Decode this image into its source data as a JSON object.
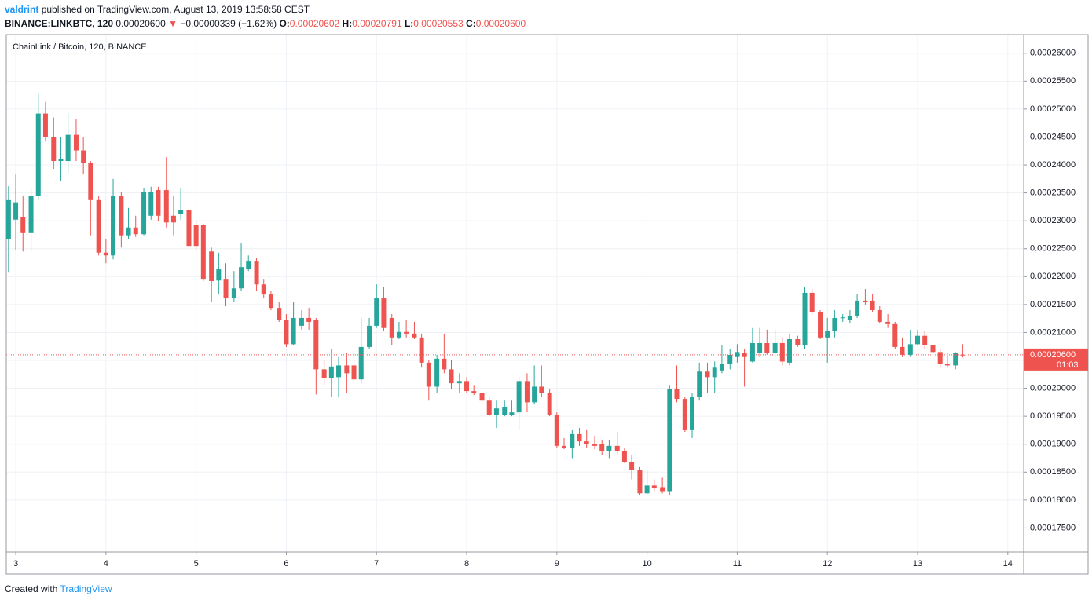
{
  "header": {
    "author": "valdrint",
    "published": "published on TradingView.com, August 13, 2019 13:58:58 CEST",
    "symbol": "BINANCE:LINKBTC, 120",
    "last": "0.00020600",
    "change": "−0.00000339 (−1.62%)",
    "o_label": "O:",
    "o": "0.00020602",
    "h_label": "H:",
    "h": "0.00020791",
    "l_label": "L:",
    "l": "0.00020553",
    "c_label": "C:",
    "c": "0.00020600"
  },
  "footer": {
    "created": "Created with",
    "brand": "TradingView"
  },
  "chart_data": {
    "type": "candlestick",
    "title": "ChainLink / Bitcoin, 120, BINANCE",
    "up_color": "#26a69a",
    "down_color": "#ef5350",
    "grid": true,
    "xlim": [
      2.895,
      14.176
    ],
    "xticks": [
      3,
      4,
      5,
      6,
      7,
      8,
      9,
      10,
      11,
      12,
      13,
      14
    ],
    "ylim": [
      0.0001707,
      0.0002632
    ],
    "yticks": [
      {
        "value": 0.000175,
        "label": "0.00017500"
      },
      {
        "value": 0.00018,
        "label": "0.00018000"
      },
      {
        "value": 0.000185,
        "label": "0.00018500"
      },
      {
        "value": 0.00019,
        "label": "0.00019000"
      },
      {
        "value": 0.000195,
        "label": "0.00019500"
      },
      {
        "value": 0.0002,
        "label": "0.00020000"
      },
      {
        "value": 0.000205,
        "label": "0.00020500"
      },
      {
        "value": 0.00021,
        "label": "0.00021000"
      },
      {
        "value": 0.000215,
        "label": "0.00021500"
      },
      {
        "value": 0.00022,
        "label": "0.00022000"
      },
      {
        "value": 0.000225,
        "label": "0.00022500"
      },
      {
        "value": 0.00023,
        "label": "0.00023000"
      },
      {
        "value": 0.000235,
        "label": "0.00023500"
      },
      {
        "value": 0.00024,
        "label": "0.00024000"
      },
      {
        "value": 0.000245,
        "label": "0.00024500"
      },
      {
        "value": 0.00025,
        "label": "0.00025000"
      },
      {
        "value": 0.000255,
        "label": "0.00025500"
      },
      {
        "value": 0.00026,
        "label": "0.00026000"
      }
    ],
    "last_price": {
      "value": 0.000206,
      "label": "0.00020600"
    },
    "countdown": "01:03",
    "x": [
      2.92,
      3,
      3.08,
      3.17,
      3.25,
      3.33,
      3.42,
      3.5,
      3.58,
      3.67,
      3.75,
      3.83,
      3.92,
      4,
      4.08,
      4.17,
      4.25,
      4.33,
      4.42,
      4.5,
      4.58,
      4.67,
      4.75,
      4.83,
      4.92,
      5,
      5.08,
      5.17,
      5.25,
      5.33,
      5.42,
      5.5,
      5.58,
      5.67,
      5.75,
      5.83,
      5.92,
      6,
      6.08,
      6.17,
      6.25,
      6.33,
      6.42,
      6.5,
      6.58,
      6.67,
      6.75,
      6.83,
      6.92,
      7,
      7.08,
      7.17,
      7.25,
      7.33,
      7.42,
      7.5,
      7.58,
      7.67,
      7.75,
      7.83,
      7.92,
      8,
      8.08,
      8.17,
      8.25,
      8.33,
      8.42,
      8.5,
      8.58,
      8.67,
      8.75,
      8.83,
      8.92,
      9,
      9.08,
      9.17,
      9.25,
      9.33,
      9.42,
      9.5,
      9.58,
      9.67,
      9.75,
      9.83,
      9.92,
      10,
      10.08,
      10.17,
      10.25,
      10.33,
      10.42,
      10.5,
      10.58,
      10.67,
      10.75,
      10.83,
      10.92,
      11,
      11.08,
      11.17,
      11.25,
      11.33,
      11.42,
      11.5,
      11.58,
      11.67,
      11.75,
      11.83,
      11.92,
      12,
      12.08,
      12.17,
      12.25,
      12.33,
      12.42,
      12.5,
      12.58,
      12.67,
      12.75,
      12.83,
      12.92,
      13,
      13.08,
      13.17,
      13.25,
      13.33,
      13.42,
      13.5
    ],
    "open": [
      0.0002267,
      0.0002302,
      0.0002306,
      0.0002278,
      0.0002344,
      0.0002492,
      0.000245,
      0.0002407,
      0.0002407,
      0.0002454,
      0.0002426,
      0.0002403,
      0.0002337,
      0.0002243,
      0.0002238,
      0.0002344,
      0.0002274,
      0.0002288,
      0.0002276,
      0.0002309,
      0.0002355,
      0.0002355,
      0.0002309,
      0.0002312,
      0.0002319,
      0.0002292,
      0.0002292,
      0.0002245,
      0.0002193,
      0.0002196,
      0.0002161,
      0.0002179,
      0.0002213,
      0.0002227,
      0.0002186,
      0.0002168,
      0.0002144,
      0.0002122,
      0.0002079,
      0.0002112,
      0.0002126,
      0.0002122,
      0.0002034,
      0.0002018,
      0.000202,
      0.0002041,
      0.0002041,
      0.0002016,
      0.0002074,
      0.0002112,
      0.0002161,
      0.0002126,
      0.0002091,
      0.0002101,
      0.0002098,
      0.0002091,
      0.0002046,
      0.0002003,
      0.0002053,
      0.0002034,
      0.0002009,
      0.0002013,
      0.0001995,
      0.0001992,
      0.0001978,
      0.0001953,
      0.0001953,
      0.0001953,
      0.0001957,
      0.0002013,
      0.0001975,
      0.0002003,
      0.0001992,
      0.0001953,
      0.0001897,
      0.0001894,
      0.0001918,
      0.0001905,
      0.0001901,
      0.0001901,
      0.0001887,
      0.0001897,
      0.0001887,
      0.0001868,
      0.0001854,
      0.0001812,
      0.0001826,
      0.0001823,
      0.0001816,
      0.0001999,
      0.0001981,
      0.0001925,
      0.0001985,
      0.000203,
      0.000202,
      0.0002032,
      0.0002044,
      0.0002056,
      0.0002063,
      0.0002048,
      0.0002063,
      0.0002081,
      0.0002063,
      0.0002081,
      0.0002046,
      0.0002088,
      0.0002077,
      0.0002171,
      0.0002136,
      0.0002091,
      0.0002102,
      0.0002126,
      0.0002122,
      0.000213,
      0.0002157,
      0.0002157,
      0.000214,
      0.0002119,
      0.0002115,
      0.0002074,
      0.000206,
      0.0002079,
      0.0002094,
      0.0002077,
      0.0002065,
      0.0002044,
      0.0002041,
      0.00020602
    ],
    "high": [
      0.0002362,
      0.0002383,
      0.0002344,
      0.0002358,
      0.0002527,
      0.0002513,
      0.0002485,
      0.000245,
      0.0002492,
      0.0002482,
      0.000245,
      0.0002407,
      0.0002344,
      0.0002267,
      0.0002375,
      0.0002351,
      0.0002323,
      0.0002309,
      0.0002358,
      0.0002361,
      0.0002361,
      0.0002414,
      0.0002344,
      0.0002358,
      0.0002323,
      0.0002299,
      0.0002295,
      0.0002252,
      0.0002243,
      0.0002224,
      0.000221,
      0.000226,
      0.0002238,
      0.0002234,
      0.0002196,
      0.0002175,
      0.0002154,
      0.0002133,
      0.0002154,
      0.000214,
      0.0002144,
      0.0002126,
      0.0002051,
      0.000207,
      0.0002056,
      0.0002063,
      0.000207,
      0.0002126,
      0.0002126,
      0.0002186,
      0.0002182,
      0.0002133,
      0.0002119,
      0.0002122,
      0.0002119,
      0.0002098,
      0.0002051,
      0.000206,
      0.0002098,
      0.0002051,
      0.0002027,
      0.000202,
      0.0002006,
      0.0001999,
      0.0001985,
      0.0001978,
      0.0001978,
      0.0001978,
      0.000202,
      0.0002027,
      0.0002041,
      0.0002041,
      0.0001999,
      0.0001957,
      0.0001911,
      0.0001925,
      0.0001929,
      0.0001925,
      0.0001915,
      0.0001908,
      0.0001908,
      0.0001922,
      0.0001894,
      0.000188,
      0.0001859,
      0.0001852,
      0.0001837,
      0.000184,
      0.0002006,
      0.0002041,
      0.0001985,
      0.0001992,
      0.0002046,
      0.0002046,
      0.0002048,
      0.0002077,
      0.000207,
      0.0002079,
      0.000207,
      0.0002108,
      0.0002108,
      0.0002105,
      0.0002105,
      0.0002091,
      0.0002098,
      0.0002094,
      0.0002182,
      0.0002178,
      0.000214,
      0.0002126,
      0.000214,
      0.0002133,
      0.000214,
      0.0002168,
      0.0002178,
      0.0002168,
      0.0002147,
      0.0002133,
      0.0002119,
      0.0002091,
      0.0002105,
      0.0002105,
      0.0002102,
      0.0002084,
      0.000207,
      0.0002063,
      0.0002065,
      0.00020791
    ],
    "low": [
      0.0002207,
      0.0002248,
      0.0002245,
      0.0002245,
      0.0002337,
      0.0002442,
      0.0002393,
      0.0002372,
      0.0002386,
      0.0002407,
      0.0002383,
      0.0002274,
      0.0002238,
      0.0002224,
      0.0002231,
      0.0002252,
      0.0002267,
      0.0002271,
      0.0002274,
      0.0002302,
      0.0002299,
      0.0002288,
      0.0002274,
      0.0002302,
      0.0002252,
      0.0002248,
      0.0002192,
      0.0002154,
      0.0002168,
      0.0002147,
      0.0002154,
      0.0002175,
      0.000221,
      0.0002175,
      0.0002161,
      0.000214,
      0.0002119,
      0.0002074,
      0.0002077,
      0.0002105,
      0.0002105,
      0.0001989,
      0.0002006,
      0.0001985,
      0.0001985,
      0.0001992,
      0.0002009,
      0.0002009,
      0.000207,
      0.0002108,
      0.0002102,
      0.0002077,
      0.0002088,
      0.0002091,
      0.0002088,
      0.0002037,
      0.0001978,
      0.0001992,
      0.0002027,
      0.0001999,
      0.0001992,
      0.0001992,
      0.0001988,
      0.0001971,
      0.000195,
      0.0001929,
      0.000195,
      0.000195,
      0.0001925,
      0.0001957,
      0.0001971,
      0.0001985,
      0.000195,
      0.0001894,
      0.0001891,
      0.0001875,
      0.0001897,
      0.0001894,
      0.0001891,
      0.000188,
      0.0001875,
      0.000188,
      0.0001866,
      0.0001837,
      0.0001809,
      0.0001809,
      0.0001816,
      0.0001812,
      0.0001809,
      0.0001975,
      0.0001922,
      0.0001911,
      0.0001978,
      0.0001992,
      0.0001992,
      0.0002027,
      0.0002034,
      0.0002046,
      0.0002003,
      0.0002046,
      0.0002056,
      0.000206,
      0.0002056,
      0.0002041,
      0.0002041,
      0.0002074,
      0.000207,
      0.0002133,
      0.0002088,
      0.0002046,
      0.0002091,
      0.0002119,
      0.0002116,
      0.0002126,
      0.000215,
      0.0002136,
      0.0002116,
      0.0002108,
      0.000207,
      0.0002056,
      0.0002056,
      0.0002077,
      0.000207,
      0.0002056,
      0.0002037,
      0.0002037,
      0.0002034,
      0.00020553
    ],
    "close": [
      0.0002337,
      0.0002333,
      0.0002278,
      0.0002344,
      0.0002492,
      0.000245,
      0.0002407,
      0.000241,
      0.0002454,
      0.0002426,
      0.0002403,
      0.0002337,
      0.0002243,
      0.0002238,
      0.0002344,
      0.0002274,
      0.0002288,
      0.0002276,
      0.0002351,
      0.0002351,
      0.0002309,
      0.0002297,
      0.0002297,
      0.0002319,
      0.0002255,
      0.0002255,
      0.0002196,
      0.0002192,
      0.0002213,
      0.0002161,
      0.0002179,
      0.0002217,
      0.0002227,
      0.0002186,
      0.0002168,
      0.0002144,
      0.0002122,
      0.0002079,
      0.0002126,
      0.0002126,
      0.0002119,
      0.0002034,
      0.0002018,
      0.0002039,
      0.0002041,
      0.0002027,
      0.0002016,
      0.0002074,
      0.0002112,
      0.0002161,
      0.0002108,
      0.0002091,
      0.0002101,
      0.0002098,
      0.0002091,
      0.0002046,
      0.0002003,
      0.0002053,
      0.0002034,
      0.0002009,
      0.0002013,
      0.0001995,
      0.0001992,
      0.0001978,
      0.0001953,
      0.0001964,
      0.0001967,
      0.0001957,
      0.0002013,
      0.0001975,
      0.0002003,
      0.0001992,
      0.0001953,
      0.0001897,
      0.0001894,
      0.0001918,
      0.0001905,
      0.0001901,
      0.0001897,
      0.0001887,
      0.0001897,
      0.0001887,
      0.0001868,
      0.0001854,
      0.0001812,
      0.0001826,
      0.0001821,
      0.0001816,
      0.0001999,
      0.0001981,
      0.0001925,
      0.0001985,
      0.000203,
      0.000202,
      0.0002037,
      0.0002044,
      0.000206,
      0.0002065,
      0.0002056,
      0.0002081,
      0.0002081,
      0.0002063,
      0.0002081,
      0.0002048,
      0.0002088,
      0.0002077,
      0.0002171,
      0.0002136,
      0.0002091,
      0.0002102,
      0.0002126,
      0.0002127,
      0.000213,
      0.0002157,
      0.0002154,
      0.000214,
      0.0002119,
      0.0002115,
      0.0002074,
      0.000206,
      0.0002079,
      0.0002094,
      0.0002077,
      0.0002065,
      0.0002044,
      0.0002041,
      0.0002063,
      0.000206
    ]
  }
}
